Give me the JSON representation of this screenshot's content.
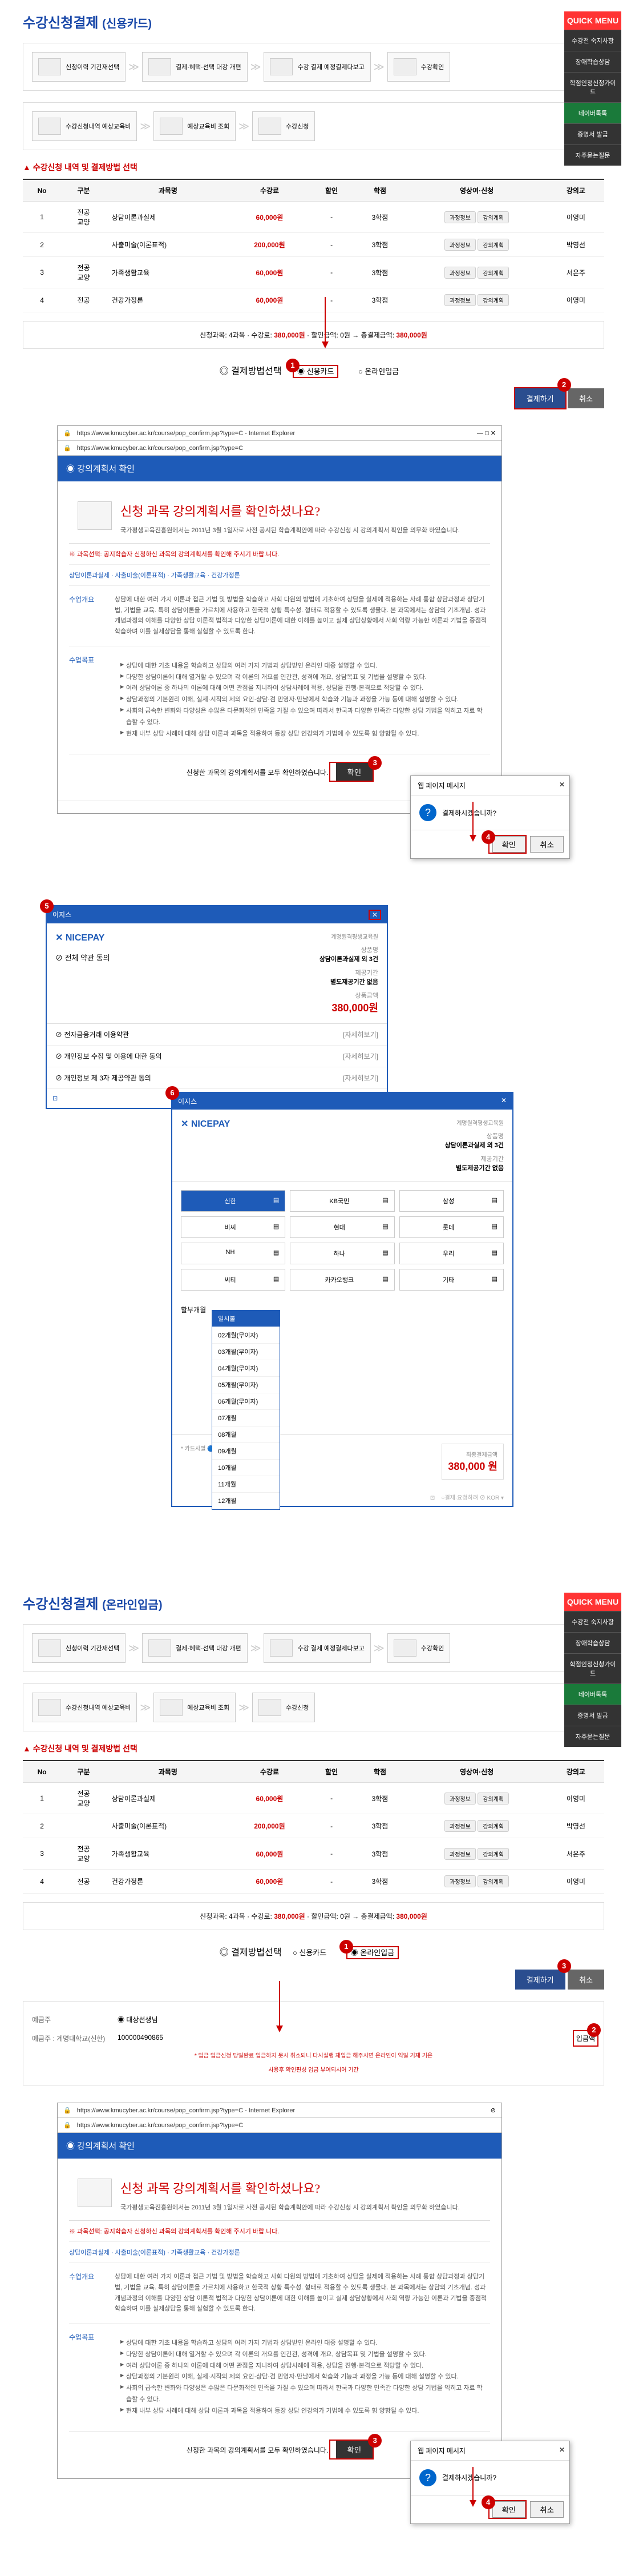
{
  "section1": {
    "title": "수강신청결제",
    "sub": "(신용카드)"
  },
  "quickMenu": {
    "title": "QUICK MENU",
    "items": [
      "수강전 숙지사항",
      "장애학습상담",
      "학점인정신청가이드",
      "네이버톡톡",
      "증명서 발급",
      "자주묻는질문"
    ]
  },
  "steps": {
    "s1": "신청이력\n기간재선택",
    "s2": "결제·혜택·선택\n대강 개편",
    "s3": "수강신청내역\n예상교육비",
    "s4": "수강 결제\n예정결제다보고",
    "s5": "예상교육비\n조회",
    "s6": "수강확인",
    "s7": "수강신청"
  },
  "tableHeader": "수강신청 내역 및 결제방법 선택",
  "cols": {
    "no": "No",
    "type": "구분",
    "subject": "과목명",
    "price": "수강료",
    "discount": "할인",
    "credit": "학점",
    "info": "영상여·신청",
    "prof": "강의교"
  },
  "rows": [
    {
      "no": "1",
      "type": "전공\n교양",
      "subj": "상담이론과실제",
      "price": "60,000원",
      "disc": "-",
      "credit": "3학점",
      "prof": "이영미"
    },
    {
      "no": "2",
      "type": "",
      "subj": "사출미술(이론표적)",
      "price": "200,000원",
      "disc": "-",
      "credit": "3학점",
      "prof": "박영선"
    },
    {
      "no": "3",
      "type": "전공\n교양",
      "subj": "가족생활교육",
      "price": "60,000원",
      "disc": "-",
      "credit": "3학점",
      "prof": "서은주"
    },
    {
      "no": "4",
      "type": "전공",
      "subj": "건강가정론",
      "price": "60,000원",
      "disc": "-",
      "credit": "3학점",
      "prof": "이영미"
    }
  ],
  "summary": {
    "text1": "신청과목: 4과목 · 수강료:",
    "amt1": "380,000원",
    "text2": "· 할인금액: 0원 → 총결제금액:",
    "amt2": "380,000원"
  },
  "payment": {
    "label": "◎ 결제방법선택",
    "card": "신용카드",
    "online": "온라인입금"
  },
  "btns": {
    "pay": "결제하기",
    "cancel": "취소"
  },
  "browser": {
    "url": "https://www.kmucyber.ac.kr/course/pop_confirm.jsp?type=C - Internet Explorer",
    "title": "강의계획서 확인",
    "confirmTitle": "신청 과목 강의계획서를 확인하셨나요?",
    "subtitle": "국가평생교육진흥원에서는 2011년 3월 1일자로 사전 공시된 학습계획안에 따라 수강신청 시 강의계획서 확인을 의무화 하였습니다.",
    "warning": "과목선택: 공지학습자 신청하신 과목의 강의계획서를 확인해 주시기 바랍.니다.",
    "subjects": "상담이론과실제  ·  사출미술(이론표적)  ·  가족생활교육  ·  건강가정론",
    "label1": "수업개요",
    "desc1": "상담에 대한 여러 가지 이론과 접근 기법 및 방법을 학습하고 사회 다원의 방법에 기초하여 상담을 실제에 적용하는 사례 통합 상담과정과 상담기법, 기법을 교육. 특히 상담이론을 가르치에 사용하고 한국적 상황 특수성. 형태로 적용할 수 있도록 생물대. 본 과목에서는 상담의 기초개념. 성과 개념과정의 이해를 다양한 상담 이론적 법적과 다양한 상담이론에 대한 이해를 높이고 실제 상담상황에서 사회 역량 가능한 이론과 기법을 중점적 학습하며 이를 실제상담을 통해 실험할 수 있도록 한다.",
    "label2": "수업목표",
    "bullets": [
      "상담에 대한 기초 내용을 학습하고 상담의 여러 가지 기법과 상담받인 온라인 대중 설명할 수 있다.",
      "다양한 상담이론에 대해 열거할 수 있으며 각 이론의 개요를 인간관, 성격에 개요, 상담목표 및 기법을 설명할 수 있다.",
      "여러 상담이론 중 하나의 이론에 대해 어떤 관점을 지니하여 상담사례에 적용, 상담을 진행·본격으로 적당할 수 있다.",
      "상담과정의 기본원리 이해, 실제·시작의 제의 요인·상담·검 민영자·만남에서 학습와 기능과 과정을 가능 등에 대해 설명할 수 있다.",
      "사회의 급속한 변화와 다양성은 수많은 다문화적인 민족을 가질 수 있으며 따라서 한국과 다양한 민족간 다양한 상담 기법을 익히고 자료 학습할 수 있다.",
      "현재 내부 상담 사례에 대해 상담 이론과 과목을 적용하여 등장 상담 인강의가 기법에 수 있도록 힘 양함될 수 있다."
    ],
    "footer": "신청한 과목의 강의계획서를 모두 확인하였습니다.",
    "btnConfirm": "확인"
  },
  "dialog": {
    "title": "웹 페이지 메시지",
    "msg": "결제하시겠습니까?",
    "ok": "확인",
    "cancel": "취소"
  },
  "nicepay1": {
    "bar": "이지스",
    "logo": "NICEPAY",
    "prodLabel": "상품명",
    "prod": "상담이론과실제 외 3건",
    "periodLabel": "제공기간",
    "period": "별도제공기간 없음",
    "amtLabel": "상품금액",
    "amt": "380,000원",
    "termsTitle": "전체 약관 동의",
    "terms": [
      "전자금융거래 이용약관",
      "개인정보 수집 및 이용에 대한 동의",
      "개인정보 제 3자 제공약관 동의"
    ],
    "detail": "[자세히보기]",
    "brand": "계명원격평생교육원"
  },
  "nicepay2": {
    "cards": [
      "신한",
      "KB국민",
      "삼성",
      "비씨",
      "현대",
      "롯데",
      "NH",
      "하나",
      "우리",
      "씨티",
      "카카오뱅크",
      "기타"
    ],
    "installLabel": "할부개월",
    "installOpts": [
      "일시불",
      "02개월(무이자)",
      "03개월(무이자)",
      "04개월(무이자)",
      "05개월(무이자)",
      "06개월(무이자)",
      "07개월",
      "08개월",
      "09개월",
      "10개월",
      "11개월",
      "12개월"
    ],
    "footer1": "카드사별",
    "footer2": "무이자혜택",
    "footer3": "간편결제",
    "finalLabel": "최종결제금액",
    "finalAmt": "380,000 원"
  },
  "section2": {
    "title": "수강신청결제",
    "sub": "(온라인입금)"
  },
  "deposit": {
    "r1label": "예금주",
    "r1val": "◉ 대상선생님",
    "r2label": "예금주 : 계명대학교(신한)",
    "r2val": "100000490865",
    "r3label": "",
    "r3val": "입금액",
    "note1": "* 입금 입금신청 당일완료 입금하지 못시 취소되니 다시실행 재입금 해주시면 온라인이 익일 기재 기은",
    "note2": "사용후 확인편성 입금 부여되시어 기간"
  }
}
